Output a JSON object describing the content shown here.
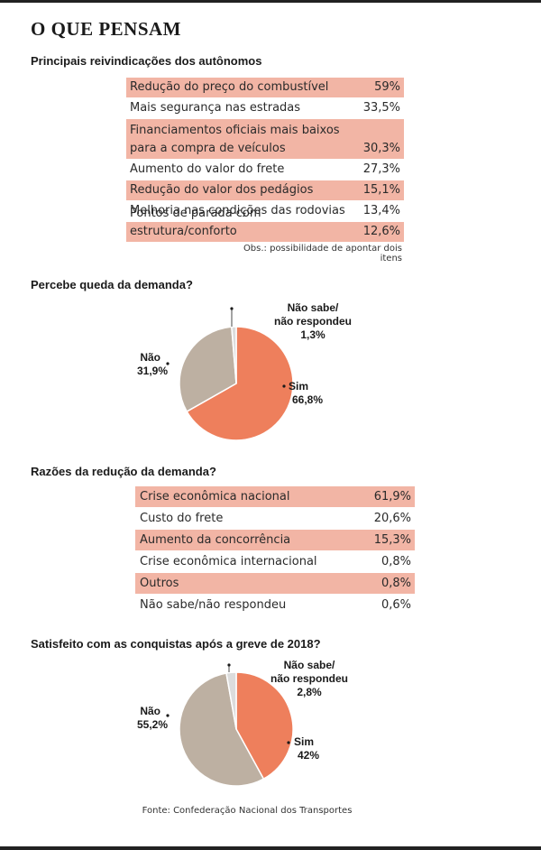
{
  "title": "O QUE PENSAM",
  "colors": {
    "highlight": "#f2b5a5",
    "sim": "#ee7f5c",
    "nao": "#bdb0a2",
    "nao_sabe": "#dcdcdc"
  },
  "chart_data": [
    {
      "type": "table",
      "title": "Principais reivindicações dos autônomos",
      "note": "Obs.: possibilidade de apontar dois itens",
      "rows": [
        {
          "label": "Redução do preço do combustível",
          "value": "59%",
          "highlight": true
        },
        {
          "label": "Mais segurança nas estradas",
          "value": "33,5%",
          "highlight": false
        },
        {
          "label": "Financiamentos oficiais mais baixos",
          "label2": "para a compra de veículos",
          "value": "30,3%",
          "highlight": true
        },
        {
          "label": "Aumento do valor do frete",
          "value": "27,3%",
          "highlight": false
        },
        {
          "label": "Redução do valor dos pedágios",
          "value": "15,1%",
          "highlight": true
        },
        {
          "label": "Melhoria nas condições das rodovias",
          "value": "13,4%",
          "highlight": false
        },
        {
          "label": "Pontos de parada com estrutura/conforto",
          "value": "12,6%",
          "highlight": true
        }
      ]
    },
    {
      "type": "pie",
      "title": "Percebe queda da demanda?",
      "slices": [
        {
          "label": "Sim",
          "value": 66.8,
          "text": "66,8%",
          "color": "#ee7f5c"
        },
        {
          "label": "Não",
          "value": 31.9,
          "text": "31,9%",
          "color": "#bdb0a2"
        },
        {
          "label": "Não sabe/",
          "label2": "não respondeu",
          "value": 1.3,
          "text": "1,3%",
          "color": "#dcdcdc"
        }
      ]
    },
    {
      "type": "table",
      "title": "Razões da redução da demanda?",
      "rows": [
        {
          "label": "Crise econômica nacional",
          "value": "61,9%",
          "highlight": true
        },
        {
          "label": "Custo do frete",
          "value": "20,6%",
          "highlight": false
        },
        {
          "label": "Aumento da concorrência",
          "value": "15,3%",
          "highlight": true
        },
        {
          "label": "Crise econômica internacional",
          "value": "0,8%",
          "highlight": false
        },
        {
          "label": "Outros",
          "value": "0,8%",
          "highlight": true
        },
        {
          "label": "Não sabe/não respondeu",
          "value": "0,6%",
          "highlight": false
        }
      ]
    },
    {
      "type": "pie",
      "title": "Satisfeito com as conquistas após a greve de 2018?",
      "slices": [
        {
          "label": "Sim",
          "value": 42,
          "text": "42%",
          "color": "#ee7f5c"
        },
        {
          "label": "Não",
          "value": 55.2,
          "text": "55,2%",
          "color": "#bdb0a2"
        },
        {
          "label": "Não sabe/",
          "label2": "não respondeu",
          "value": 2.8,
          "text": "2,8%",
          "color": "#dcdcdc"
        }
      ]
    }
  ],
  "source": "Fonte: Confederação Nacional dos Transportes"
}
